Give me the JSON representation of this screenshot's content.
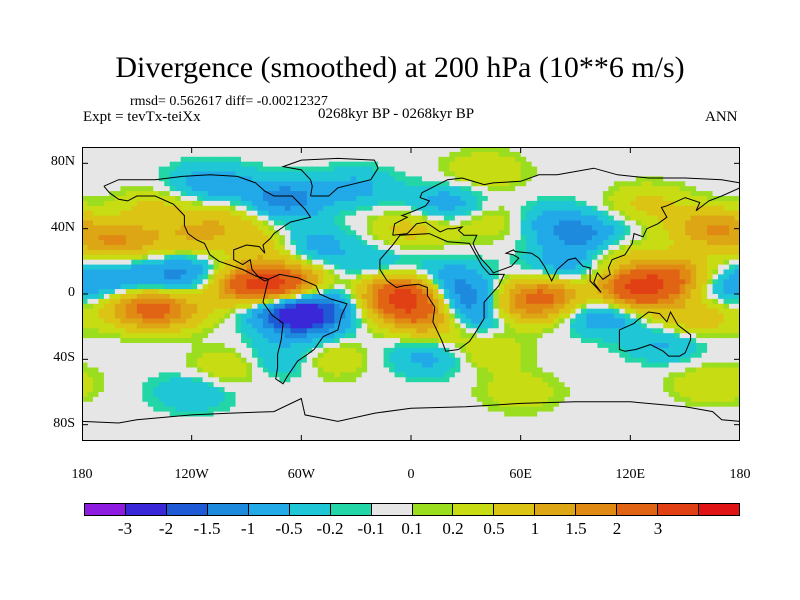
{
  "title": "Divergence (smoothed) at 200 hPa (10**6 m/s)",
  "stats": "rmsd= 0.562617 diff= -0.00212327",
  "expt": "Expt = tevTx-teiXx",
  "period": "0268kyr BP - 0268kyr BP",
  "season": "ANN",
  "map": {
    "projection": "cylindrical-equidistant",
    "lon_range": [
      -180,
      180
    ],
    "lat_range": [
      -90,
      90
    ],
    "lat_ticks": [
      {
        "value": 80,
        "label": "80N"
      },
      {
        "value": 40,
        "label": "40N"
      },
      {
        "value": 0,
        "label": "0"
      },
      {
        "value": -40,
        "label": "40S"
      },
      {
        "value": -80,
        "label": "80S"
      }
    ],
    "lon_ticks": [
      {
        "value": -180,
        "label": "180"
      },
      {
        "value": -120,
        "label": "120W"
      },
      {
        "value": -60,
        "label": "60W"
      },
      {
        "value": 0,
        "label": "0"
      },
      {
        "value": 60,
        "label": "60E"
      },
      {
        "value": 120,
        "label": "120E"
      },
      {
        "value": 180,
        "label": "180"
      }
    ],
    "anomalies": [
      {
        "lon": -70,
        "lat": 5,
        "value": 3.0
      },
      {
        "lon": -90,
        "lat": 5,
        "value": 2.0
      },
      {
        "lon": -135,
        "lat": -10,
        "value": 1.5
      },
      {
        "lon": -150,
        "lat": -8,
        "value": 1.2
      },
      {
        "lon": -160,
        "lat": 32,
        "value": 1.5
      },
      {
        "lon": -120,
        "lat": 35,
        "value": 0.8
      },
      {
        "lon": -140,
        "lat": 52,
        "value": 0.6
      },
      {
        "lon": -100,
        "lat": 45,
        "value": 0.7
      },
      {
        "lon": -80,
        "lat": 28,
        "value": 0.8
      },
      {
        "lon": -70,
        "lat": 58,
        "value": -1.3
      },
      {
        "lon": -110,
        "lat": 68,
        "value": -0.8
      },
      {
        "lon": -125,
        "lat": 12,
        "value": -1.2
      },
      {
        "lon": -160,
        "lat": 10,
        "value": -0.8
      },
      {
        "lon": -60,
        "lat": -15,
        "value": -2.0
      },
      {
        "lon": -70,
        "lat": -5,
        "value": -1.5
      },
      {
        "lon": -45,
        "lat": -5,
        "value": -0.8
      },
      {
        "lon": -55,
        "lat": 30,
        "value": -0.8
      },
      {
        "lon": -20,
        "lat": 18,
        "value": -0.5
      },
      {
        "lon": -70,
        "lat": -40,
        "value": -0.6
      },
      {
        "lon": -100,
        "lat": -45,
        "value": 0.5
      },
      {
        "lon": -45,
        "lat": -40,
        "value": 0.5
      },
      {
        "lon": -5,
        "lat": 0,
        "value": 3.0
      },
      {
        "lon": 5,
        "lat": -10,
        "value": 2.0
      },
      {
        "lon": 15,
        "lat": -20,
        "value": 0.7
      },
      {
        "lon": 20,
        "lat": 8,
        "value": -1.0
      },
      {
        "lon": 25,
        "lat": -5,
        "value": -1.5
      },
      {
        "lon": 35,
        "lat": -15,
        "value": -0.8
      },
      {
        "lon": 10,
        "lat": -38,
        "value": -0.7
      },
      {
        "lon": 40,
        "lat": -35,
        "value": 0.5
      },
      {
        "lon": 0,
        "lat": 40,
        "value": 0.7
      },
      {
        "lon": 20,
        "lat": 55,
        "value": -0.8
      },
      {
        "lon": 45,
        "lat": 45,
        "value": 0.5
      },
      {
        "lon": 75,
        "lat": 0,
        "value": 1.8
      },
      {
        "lon": 60,
        "lat": -8,
        "value": 1.2
      },
      {
        "lon": 85,
        "lat": 15,
        "value": -0.9
      },
      {
        "lon": 95,
        "lat": 35,
        "value": -1.2
      },
      {
        "lon": 75,
        "lat": 45,
        "value": -0.6
      },
      {
        "lon": 125,
        "lat": 3,
        "value": 3.2
      },
      {
        "lon": 145,
        "lat": 12,
        "value": 1.5
      },
      {
        "lon": 155,
        "lat": -15,
        "value": 0.9
      },
      {
        "lon": 105,
        "lat": -12,
        "value": -1.0
      },
      {
        "lon": 140,
        "lat": -30,
        "value": -0.6
      },
      {
        "lon": 175,
        "lat": 5,
        "value": -0.8
      },
      {
        "lon": 165,
        "lat": 40,
        "value": 1.5
      },
      {
        "lon": 130,
        "lat": 55,
        "value": 0.6
      },
      {
        "lon": 110,
        "lat": 25,
        "value": 0.6
      },
      {
        "lon": -30,
        "lat": 65,
        "value": -0.6
      },
      {
        "lon": 40,
        "lat": 75,
        "value": 0.5
      },
      {
        "lon": -120,
        "lat": -60,
        "value": -0.5
      },
      {
        "lon": 60,
        "lat": -60,
        "value": 0.4
      },
      {
        "lon": 165,
        "lat": -55,
        "value": 0.5
      }
    ]
  },
  "colorbar": {
    "colors": [
      "#8e1ce0",
      "#3a28d8",
      "#1f5ad6",
      "#1e8ade",
      "#21a9e8",
      "#1ec6d6",
      "#23d6a8",
      "#e6e6e6",
      "#9bdd1f",
      "#c8dc14",
      "#dcc414",
      "#dca614",
      "#e08a14",
      "#e06414",
      "#e04014",
      "#e01414"
    ],
    "labels": [
      "-3",
      "-2",
      "-1.5",
      "-1",
      "-0.5",
      "-0.2",
      "-0.1",
      "0.1",
      "0.2",
      "0.5",
      "1",
      "1.5",
      "2",
      "3"
    ],
    "levels": [
      -3,
      -2,
      -1.5,
      -1,
      -0.5,
      -0.2,
      -0.1,
      0.1,
      0.2,
      0.5,
      1,
      1.5,
      2,
      3
    ]
  }
}
